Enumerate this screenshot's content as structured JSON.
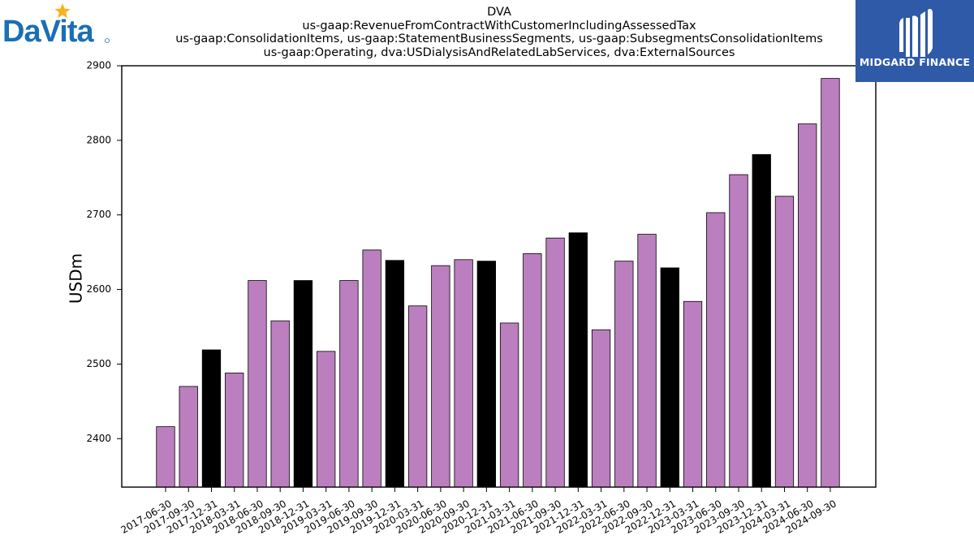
{
  "logos": {
    "left": {
      "text": "DaVita"
    },
    "right": {
      "text": "MIDGARD FINANCE"
    }
  },
  "colors": {
    "bar_default": "#bb7fbf",
    "bar_highlight": "#000000",
    "logo_blue": "#1a6fb5",
    "logo_star": "#f5b323",
    "midgard_bg": "#2e5aa8"
  },
  "chart_data": {
    "type": "bar",
    "title_lines": [
      "DVA",
      "us-gaap:RevenueFromContractWithCustomerIncludingAssessedTax",
      "us-gaap:ConsolidationItems, us-gaap:StatementBusinessSegments, us-gaap:SubsegmentsConsolidationItems",
      "us-gaap:Operating, dva:USDialysisAndRelatedLabServices, dva:ExternalSources"
    ],
    "ylabel": "USDm",
    "xlabel": "",
    "ylim": [
      2335,
      2900
    ],
    "yticks": [
      2400,
      2500,
      2600,
      2700,
      2800,
      2900
    ],
    "categories": [
      "2017-06-30",
      "2017-09-30",
      "2017-12-31",
      "2018-03-31",
      "2018-06-30",
      "2018-09-30",
      "2018-12-31",
      "2019-03-31",
      "2019-06-30",
      "2019-09-30",
      "2019-12-31",
      "2020-03-31",
      "2020-06-30",
      "2020-09-30",
      "2020-12-31",
      "2021-03-31",
      "2021-06-30",
      "2021-09-30",
      "2021-12-31",
      "2022-03-31",
      "2022-06-30",
      "2022-09-30",
      "2022-12-31",
      "2023-03-31",
      "2023-06-30",
      "2023-09-30",
      "2023-12-31",
      "2024-03-31",
      "2024-06-30",
      "2024-09-30"
    ],
    "values": [
      2416,
      2470,
      2519,
      2488,
      2612,
      2558,
      2612,
      2517,
      2612,
      2653,
      2639,
      2578,
      2632,
      2640,
      2638,
      2555,
      2648,
      2669,
      2676,
      2546,
      2638,
      2674,
      2629,
      2584,
      2703,
      2754,
      2781,
      2725,
      2822,
      2883
    ],
    "highlight": [
      false,
      false,
      true,
      false,
      false,
      false,
      true,
      false,
      false,
      false,
      true,
      false,
      false,
      false,
      true,
      false,
      false,
      false,
      true,
      false,
      false,
      false,
      true,
      false,
      false,
      false,
      true,
      false,
      false,
      false
    ],
    "grid": false,
    "legend": "none"
  }
}
